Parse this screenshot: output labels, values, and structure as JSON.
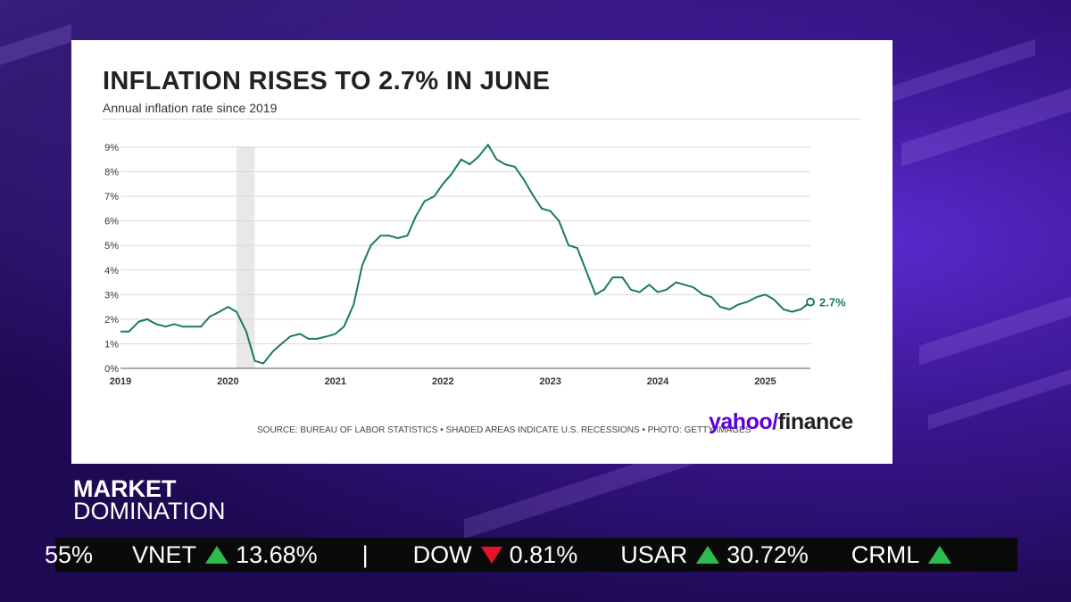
{
  "card": {
    "title": "INFLATION RISES TO 2.7% IN JUNE",
    "subtitle": "Annual inflation rate since 2019",
    "source": "SOURCE: BUREAU OF LABOR STATISTICS • SHADED AREAS INDICATE U.S. RECESSIONS • PHOTO: GETTY IMAGES",
    "brand_yahoo": "yahoo/",
    "brand_finance": "finance"
  },
  "show": {
    "line1": "MARKET",
    "line2": "DOMINATION"
  },
  "ticker": {
    "partial_left": "55%",
    "items": [
      {
        "symbol": "VNET",
        "direction": "up",
        "change": "13.68%"
      },
      {
        "symbol": "DOW",
        "direction": "down",
        "change": "0.81%"
      },
      {
        "symbol": "USAR",
        "direction": "up",
        "change": "30.72%"
      },
      {
        "symbol": "CRML",
        "direction": "up",
        "change": ""
      }
    ],
    "separator": "|"
  },
  "colors": {
    "line": "#1a7a63",
    "recession": "#e8e8e8",
    "up": "#2dbb4e",
    "down": "#e4132a",
    "brand": "#6001d2"
  },
  "chart_data": {
    "type": "line",
    "title": "INFLATION RISES TO 2.7% IN JUNE",
    "subtitle": "Annual inflation rate since 2019",
    "x_ticks": [
      "2019",
      "2020",
      "2021",
      "2022",
      "2023",
      "2024",
      "2025"
    ],
    "y_ticks": [
      "0%",
      "1%",
      "2%",
      "3%",
      "4%",
      "5%",
      "6%",
      "7%",
      "8%",
      "9%"
    ],
    "ylim": [
      0,
      9
    ],
    "xlim": [
      2019.0,
      2025.42
    ],
    "grid": true,
    "recession_shading": [
      [
        2020.08,
        2020.25
      ]
    ],
    "end_label": "2.7%",
    "series": [
      {
        "x": [
          2019.0,
          2019.08,
          2019.17,
          2019.25,
          2019.33,
          2019.42,
          2019.5,
          2019.58,
          2019.67,
          2019.75,
          2019.83,
          2019.92,
          2020.0,
          2020.08,
          2020.17,
          2020.25,
          2020.33,
          2020.42,
          2020.5,
          2020.58,
          2020.67,
          2020.75,
          2020.83,
          2020.92,
          2021.0,
          2021.08,
          2021.17,
          2021.25,
          2021.33,
          2021.42,
          2021.5,
          2021.58,
          2021.67,
          2021.75,
          2021.83,
          2021.92,
          2022.0,
          2022.08,
          2022.17,
          2022.25,
          2022.33,
          2022.42,
          2022.5,
          2022.58,
          2022.67,
          2022.75,
          2022.83,
          2022.92,
          2023.0,
          2023.08,
          2023.17,
          2023.25,
          2023.33,
          2023.42,
          2023.5,
          2023.58,
          2023.67,
          2023.75,
          2023.83,
          2023.92,
          2024.0,
          2024.08,
          2024.17,
          2024.25,
          2024.33,
          2024.42,
          2024.5,
          2024.58,
          2024.67,
          2024.75,
          2024.83,
          2024.92,
          2025.0,
          2025.08,
          2025.17,
          2025.25,
          2025.33,
          2025.42
        ],
        "values": [
          1.5,
          1.5,
          1.9,
          2.0,
          1.8,
          1.7,
          1.8,
          1.7,
          1.7,
          1.7,
          2.1,
          2.3,
          2.5,
          2.3,
          1.5,
          0.3,
          0.2,
          0.7,
          1.0,
          1.3,
          1.4,
          1.2,
          1.2,
          1.3,
          1.4,
          1.7,
          2.6,
          4.2,
          5.0,
          5.4,
          5.4,
          5.3,
          5.4,
          6.2,
          6.8,
          7.0,
          7.5,
          7.9,
          8.5,
          8.3,
          8.6,
          9.1,
          8.5,
          8.3,
          8.2,
          7.7,
          7.1,
          6.5,
          6.4,
          6.0,
          5.0,
          4.9,
          4.0,
          3.0,
          3.2,
          3.7,
          3.7,
          3.2,
          3.1,
          3.4,
          3.1,
          3.2,
          3.5,
          3.4,
          3.3,
          3.0,
          2.9,
          2.5,
          2.4,
          2.6,
          2.7,
          2.9,
          3.0,
          2.8,
          2.4,
          2.3,
          2.4,
          2.7
        ]
      }
    ]
  }
}
